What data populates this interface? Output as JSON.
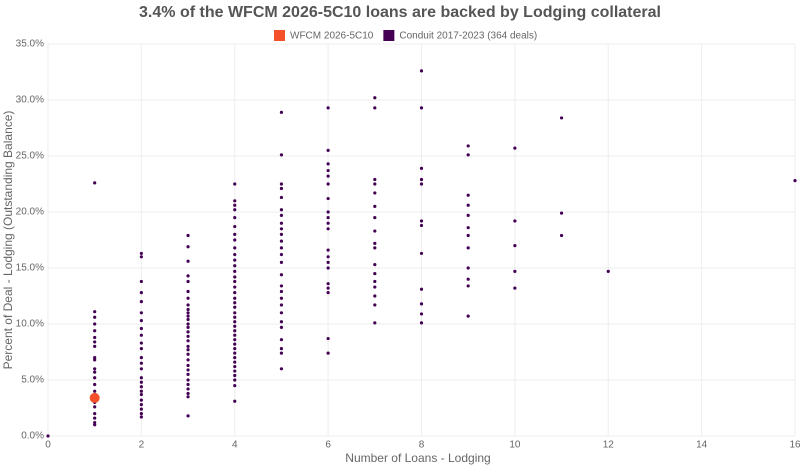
{
  "chart_data": {
    "type": "scatter",
    "title": "3.4% of the WFCM 2026-5C10 loans are backed by Lodging collateral",
    "x_label": "Number of Loans - Lodging",
    "y_label": "Percent of Deal - Lodging (Outstanding Balance)",
    "xlim": [
      0,
      16
    ],
    "xticks": [
      0,
      2,
      4,
      6,
      8,
      10,
      12,
      14,
      16
    ],
    "ylim": [
      0,
      35
    ],
    "yticks": [
      {
        "value": 0,
        "label": "0.0%"
      },
      {
        "value": 5,
        "label": "5.0%"
      },
      {
        "value": 10,
        "label": "10.0%"
      },
      {
        "value": 15,
        "label": "15.0%"
      },
      {
        "value": 20,
        "label": "20.0%"
      },
      {
        "value": 25,
        "label": "25.0%"
      },
      {
        "value": 30,
        "label": "30.0%"
      },
      {
        "value": 35,
        "label": "35.0%"
      }
    ],
    "grid": true,
    "series": [
      {
        "name": "Conduit 2017-2023 (364 deals)",
        "color": "#440154",
        "x": [
          0,
          1,
          1,
          1,
          1,
          1,
          1,
          1,
          1,
          1,
          1,
          1,
          1,
          1,
          1,
          1,
          1,
          1,
          1,
          1,
          1,
          1,
          1,
          2,
          2,
          2,
          2,
          2,
          2,
          2,
          2,
          2,
          2,
          2,
          2,
          2,
          2,
          2,
          2,
          2,
          2,
          2,
          2,
          2,
          2,
          2,
          2,
          3,
          3,
          3,
          3,
          3,
          3,
          3,
          3,
          3,
          3,
          3,
          3,
          3,
          3,
          3,
          3,
          3,
          3,
          3,
          3,
          3,
          3,
          3,
          3,
          3,
          3,
          3,
          3,
          3,
          3,
          4,
          4,
          4,
          4,
          4,
          4,
          4,
          4,
          4,
          4,
          4,
          4,
          4,
          4,
          4,
          4,
          4,
          4,
          4,
          4,
          4,
          4,
          4,
          4,
          4,
          4,
          4,
          4,
          4,
          4,
          4,
          4,
          4,
          4,
          4,
          4,
          4,
          4,
          5,
          5,
          5,
          5,
          5,
          5,
          5,
          5,
          5,
          5,
          5,
          5,
          5,
          5,
          5,
          5,
          5,
          5,
          5,
          5,
          5,
          5,
          5,
          5,
          5,
          5,
          6,
          6,
          6,
          6,
          6,
          6,
          6,
          6,
          6,
          6,
          6,
          6,
          6,
          6,
          6,
          6,
          6,
          6,
          6,
          6,
          7,
          7,
          7,
          7,
          7,
          7,
          7,
          7,
          7,
          7,
          7,
          7,
          7,
          7,
          7,
          7,
          7,
          8,
          8,
          8,
          8,
          8,
          8,
          8,
          8,
          8,
          8,
          8,
          8,
          9,
          9,
          9,
          9,
          9,
          9,
          9,
          9,
          9,
          9,
          9,
          9,
          10,
          10,
          10,
          10,
          10,
          11,
          11,
          11,
          12,
          16
        ],
        "values": [
          0,
          22.6,
          11.1,
          10.6,
          10.0,
          9.4,
          8.8,
          8.4,
          8.0,
          7.0,
          6.8,
          6.0,
          5.7,
          5.2,
          4.6,
          4.0,
          3.5,
          3.0,
          2.6,
          2.0,
          1.6,
          1.2,
          1.0,
          16.3,
          16.0,
          13.8,
          12.8,
          12.0,
          11.0,
          10.3,
          9.6,
          9.0,
          8.3,
          7.8,
          7.0,
          6.5,
          6.0,
          5.2,
          4.8,
          4.4,
          4.0,
          3.7,
          3.2,
          2.8,
          2.4,
          2.0,
          1.7,
          17.9,
          16.9,
          15.6,
          14.3,
          13.8,
          12.9,
          12.3,
          11.7,
          11.3,
          11.0,
          10.7,
          10.4,
          10.0,
          9.7,
          9.3,
          8.9,
          8.5,
          8.0,
          7.7,
          7.3,
          6.8,
          6.3,
          5.9,
          5.5,
          5.0,
          4.6,
          4.2,
          3.8,
          3.5,
          1.8,
          22.5,
          21.0,
          20.6,
          20.2,
          19.5,
          18.7,
          18.0,
          17.5,
          16.8,
          16.2,
          15.7,
          15.2,
          14.7,
          14.2,
          13.8,
          13.3,
          12.8,
          12.3,
          11.9,
          11.5,
          11.0,
          10.6,
          10.2,
          9.8,
          9.4,
          9.0,
          8.6,
          8.2,
          7.8,
          7.4,
          7.0,
          6.6,
          6.2,
          5.8,
          5.4,
          5.0,
          4.5,
          3.1,
          28.9,
          25.1,
          22.5,
          22.1,
          21.3,
          20.2,
          19.7,
          19.0,
          18.5,
          18.0,
          17.4,
          16.8,
          16.2,
          15.5,
          14.4,
          13.4,
          12.9,
          12.3,
          11.7,
          11.0,
          10.2,
          9.7,
          8.6,
          7.8,
          7.4,
          6.0,
          29.3,
          25.5,
          24.3,
          23.7,
          23.2,
          22.5,
          21.2,
          20.0,
          19.5,
          19.0,
          18.5,
          16.6,
          16.0,
          15.5,
          15.0,
          13.6,
          13.2,
          12.8,
          8.7,
          7.4,
          30.2,
          29.3,
          22.9,
          22.5,
          21.7,
          20.5,
          19.5,
          18.3,
          17.2,
          16.8,
          15.3,
          14.5,
          13.8,
          13.3,
          12.5,
          11.7,
          10.1,
          32.6,
          29.3,
          23.9,
          22.9,
          22.5,
          19.2,
          18.8,
          16.3,
          13.1,
          11.8,
          10.9,
          10.1,
          25.9,
          25.1,
          21.5,
          20.6,
          19.7,
          18.6,
          17.9,
          16.8,
          15.0,
          14.0,
          13.4,
          10.7,
          25.7,
          19.2,
          17.0,
          14.7,
          13.2,
          28.4,
          19.9,
          17.9,
          14.7,
          22.8
        ]
      },
      {
        "name": "WFCM 2026-5C10",
        "color": "#f4502a",
        "x": [
          1
        ],
        "values": [
          3.4
        ]
      }
    ]
  }
}
